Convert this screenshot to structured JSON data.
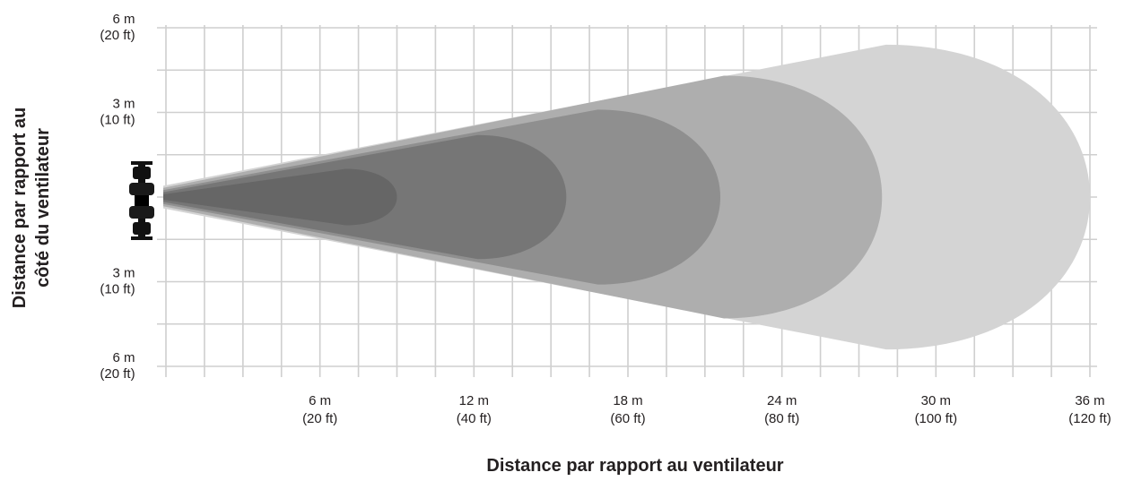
{
  "chart_data": {
    "type": "area",
    "title": "",
    "xlabel": "Distance par rapport au ventilateur",
    "ylabel_lines": [
      "Distance par rapport au",
      "côté du ventilateur"
    ],
    "x_unit": "m",
    "y_unit": "m",
    "xlim": [
      0,
      36
    ],
    "ylim": [
      -6,
      6
    ],
    "grid": true,
    "x_ticks": [
      {
        "value": 6,
        "m": "6 m",
        "ft": "(20 ft)"
      },
      {
        "value": 12,
        "m": "12 m",
        "ft": "(40 ft)"
      },
      {
        "value": 18,
        "m": "18 m",
        "ft": "(60 ft)"
      },
      {
        "value": 24,
        "m": "24 m",
        "ft": "(80 ft)"
      },
      {
        "value": 30,
        "m": "30 m",
        "ft": "(100 ft)"
      },
      {
        "value": 36,
        "m": "36 m",
        "ft": "(120 ft)"
      }
    ],
    "y_ticks": [
      {
        "value": 6,
        "m": "6 m",
        "ft": "(20 ft)"
      },
      {
        "value": 3,
        "m": "3 m",
        "ft": "(10 ft)"
      },
      {
        "value": -3,
        "m": "3 m",
        "ft": "(10 ft)"
      },
      {
        "value": -6,
        "m": "6 m",
        "ft": "(20 ft)"
      }
    ],
    "zones": [
      {
        "reach": 36,
        "half_width": 5.4,
        "color": "#d4d4d4"
      },
      {
        "reach": 27.9,
        "half_width": 4.3,
        "color": "#aeaeae"
      },
      {
        "reach": 21.6,
        "half_width": 3.1,
        "color": "#8f8f8f"
      },
      {
        "reach": 15.6,
        "half_width": 2.2,
        "color": "#767676"
      },
      {
        "reach": 9,
        "half_width": 1.0,
        "color": "#666666"
      }
    ],
    "fan_icon": "fan-icon"
  }
}
